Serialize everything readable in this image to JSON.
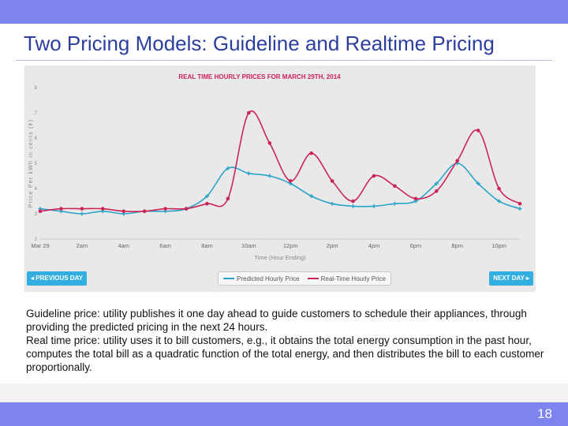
{
  "slide": {
    "title": "Two Pricing Models: Guideline and Realtime Pricing",
    "paragraph1": "Guideline price: utility publishes it one day ahead to guide customers to schedule their appliances, through providing the predicted pricing in the next 24 hours.",
    "paragraph2": "Real time price: utility uses it to bill customers, e.g., it obtains the total energy consumption in the past hour, computes the total bill as a quadratic function of the total energy, and then distributes the bill to each customer proportionally.",
    "page_number": "18"
  },
  "colors": {
    "header_bar": "#7d84f0",
    "title_text": "#2c3e9e",
    "predicted": "#2aa3c9",
    "realtime": "#cc2456",
    "chart_title": "#cc2456",
    "button": "#33aee0"
  },
  "chart_nav": {
    "prev_label": "◂ PREVIOUS DAY",
    "next_label": "NEXT DAY ▸"
  },
  "chart_data": {
    "type": "line",
    "title": "REAL TIME HOURLY PRICES FOR MARCH 29TH, 2014",
    "xlabel": "Time (Hour Ending)",
    "ylabel": "Price Per kWh in cents (¢)",
    "ylim": [
      2,
      8
    ],
    "yticks": [
      "2",
      "3",
      "4",
      "5",
      "6",
      "7",
      "8"
    ],
    "xlim": [
      0,
      23
    ],
    "xticks": [
      {
        "x": 0,
        "label": "Mar 29"
      },
      {
        "x": 2,
        "label": "2am"
      },
      {
        "x": 4,
        "label": "4am"
      },
      {
        "x": 6,
        "label": "6am"
      },
      {
        "x": 8,
        "label": "8am"
      },
      {
        "x": 10,
        "label": "10am"
      },
      {
        "x": 12,
        "label": "12pm"
      },
      {
        "x": 14,
        "label": "2pm"
      },
      {
        "x": 16,
        "label": "4pm"
      },
      {
        "x": 18,
        "label": "6pm"
      },
      {
        "x": 20,
        "label": "8pm"
      },
      {
        "x": 22,
        "label": "10pm"
      }
    ],
    "x": [
      0,
      1,
      2,
      3,
      4,
      5,
      6,
      7,
      8,
      9,
      10,
      11,
      12,
      13,
      14,
      15,
      16,
      17,
      18,
      19,
      20,
      21,
      22,
      23
    ],
    "series": [
      {
        "name": "Predicted Hourly Price",
        "values": [
          3.2,
          3.1,
          3.0,
          3.1,
          3.0,
          3.1,
          3.1,
          3.2,
          3.7,
          4.8,
          4.6,
          4.5,
          4.2,
          3.7,
          3.4,
          3.3,
          3.3,
          3.4,
          3.5,
          4.2,
          5.0,
          4.2,
          3.5,
          3.2
        ]
      },
      {
        "name": "Real-Time Hourly Price",
        "values": [
          3.1,
          3.2,
          3.2,
          3.2,
          3.1,
          3.1,
          3.2,
          3.2,
          3.4,
          3.6,
          7.0,
          5.8,
          4.3,
          5.4,
          4.3,
          3.5,
          4.5,
          4.1,
          3.6,
          3.9,
          5.1,
          6.3,
          4.0,
          3.4
        ]
      }
    ],
    "legend_position": "bottom-center",
    "grid": false
  }
}
